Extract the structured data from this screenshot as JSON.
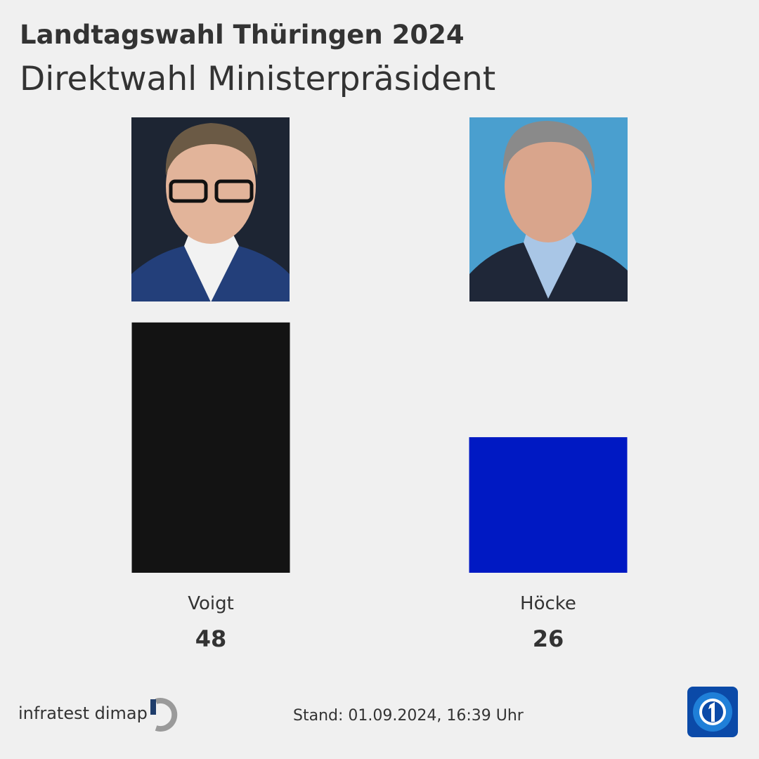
{
  "chart_data": {
    "type": "bar",
    "title": "Landtagswahl Thüringen 2024",
    "subtitle": "Direktwahl Ministerpräsident",
    "categories": [
      "Voigt",
      "Höcke"
    ],
    "values": [
      48,
      26
    ],
    "colors": [
      "#131313",
      "#0019c3"
    ],
    "source": "infratest dimap",
    "timestamp": "Stand:  01.09.2024, 16:39 Uhr"
  }
}
